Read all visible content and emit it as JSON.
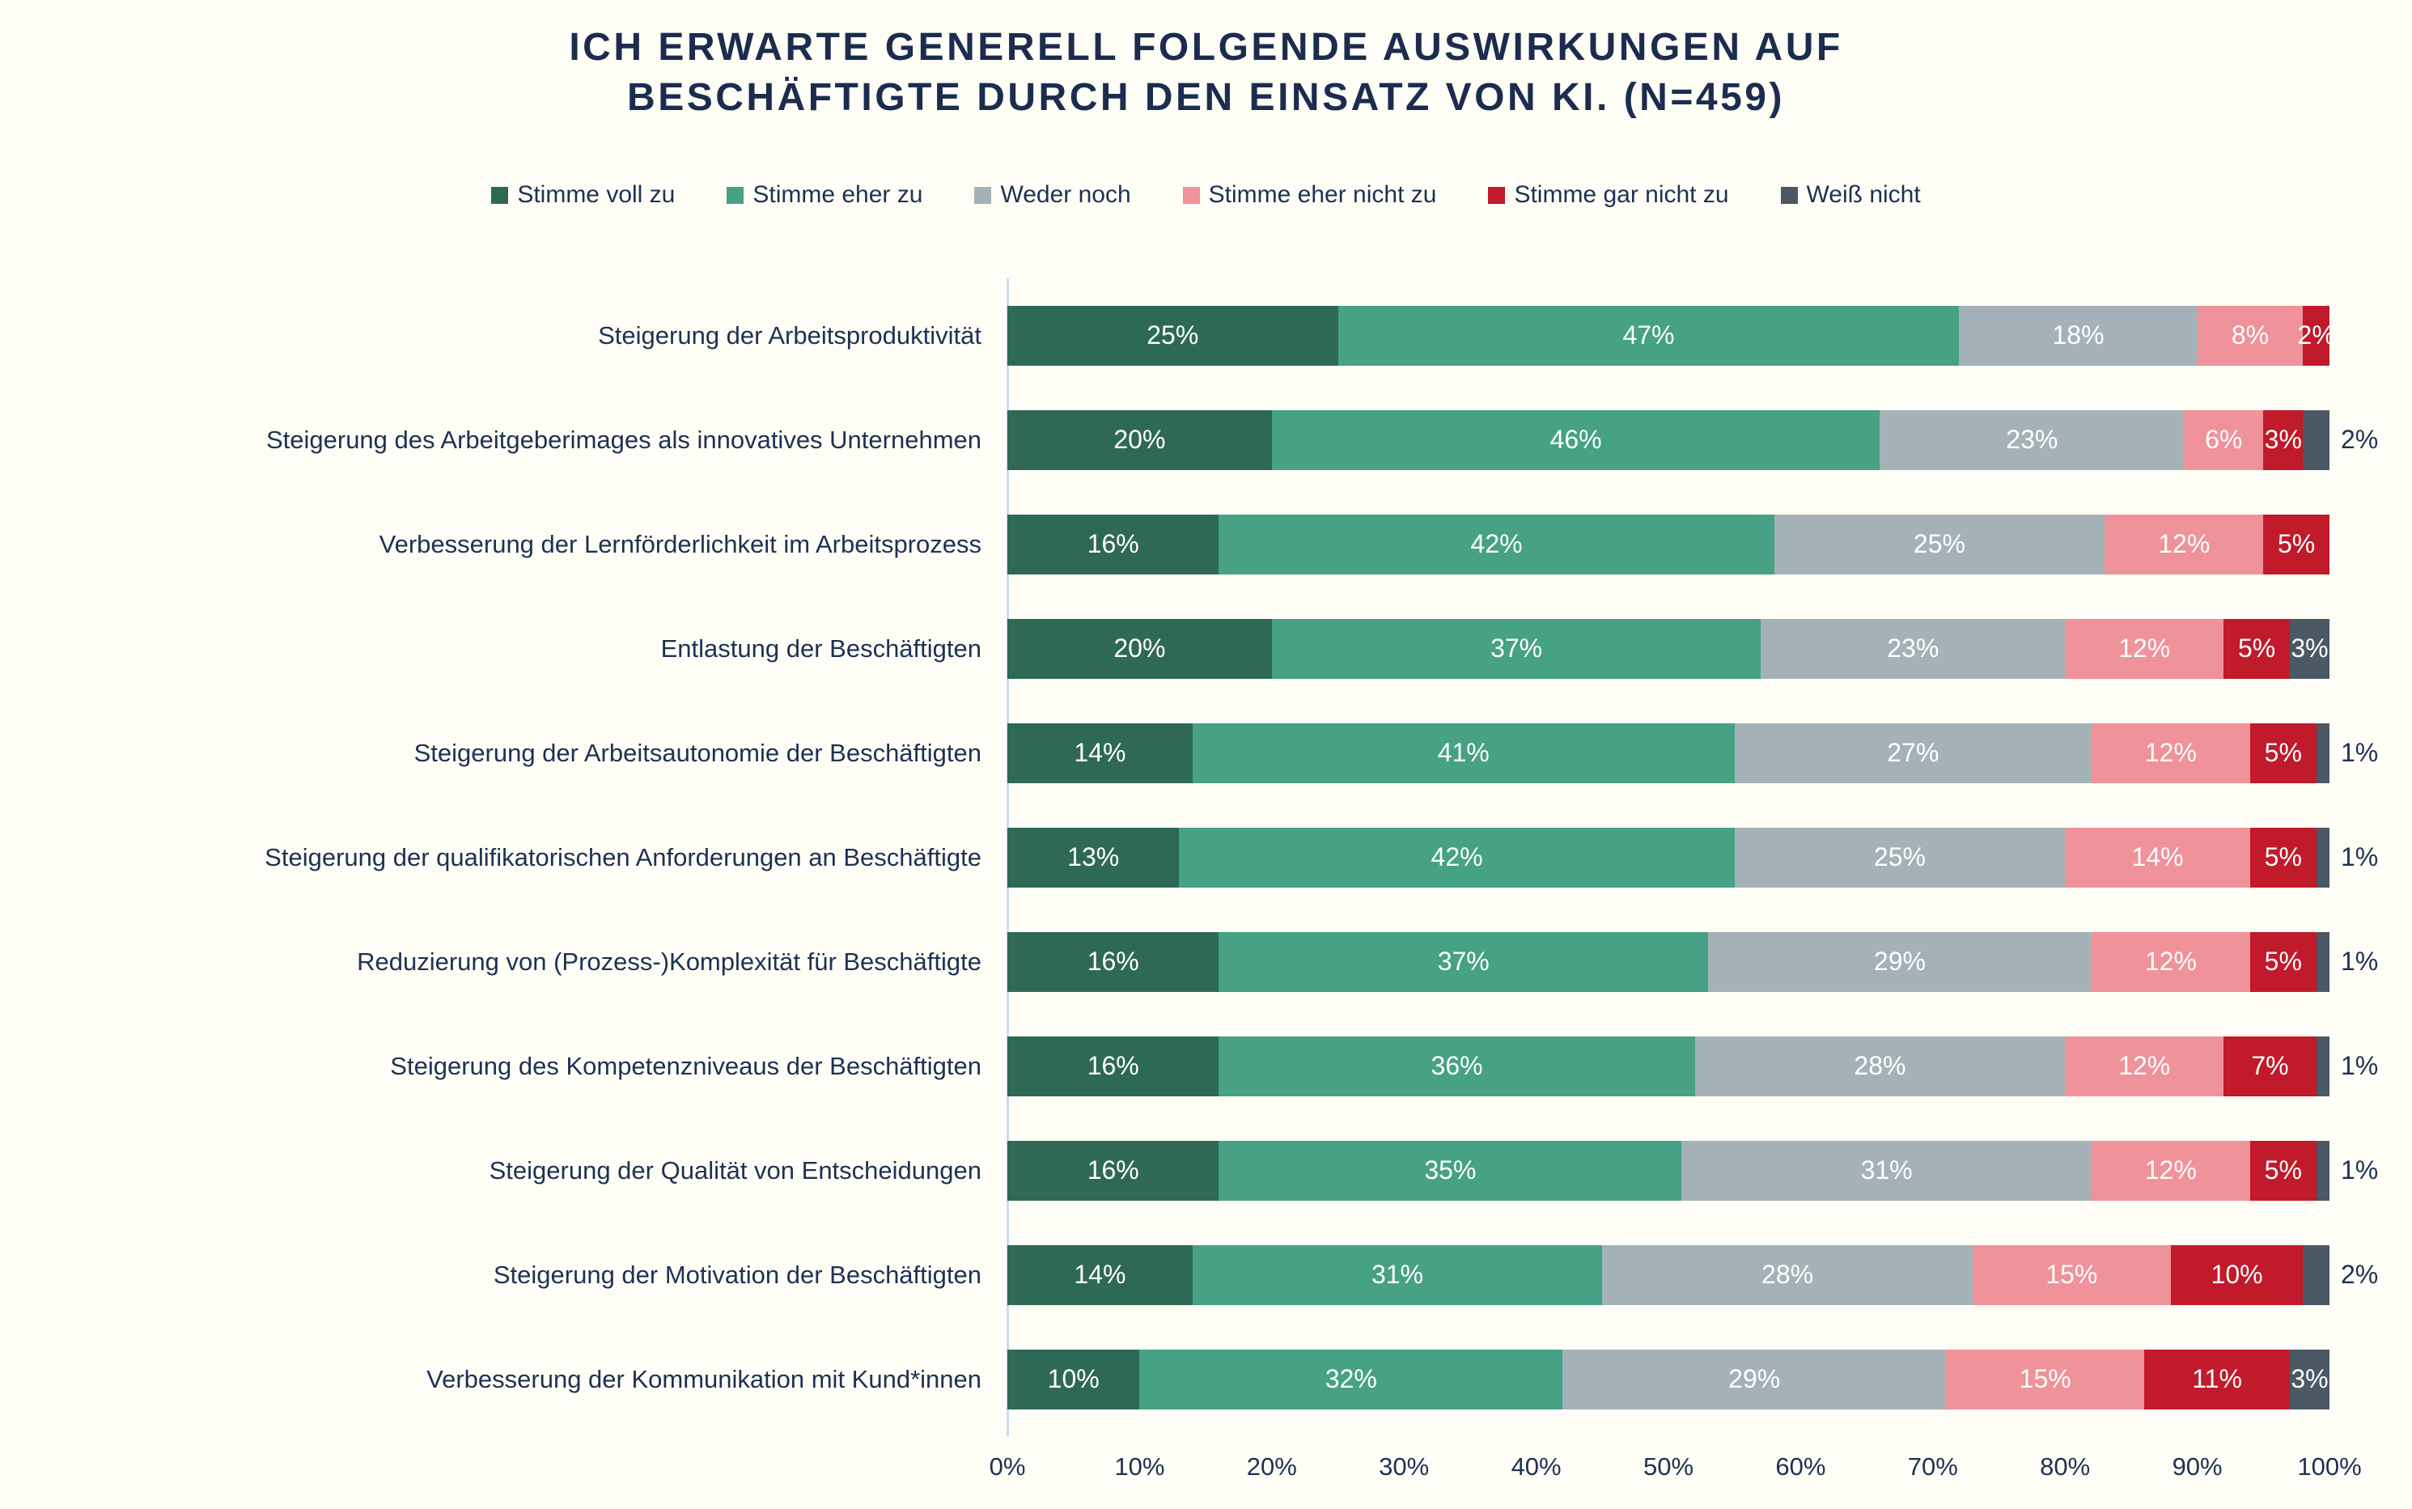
{
  "title": {
    "lines": [
      "ICH ERWARTE GENERELL FOLGENDE AUSWIRKUNGEN AUF",
      "BESCHÄFTIGTE DURCH DEN EINSATZ VON KI. (N=459)"
    ]
  },
  "legend": {
    "items": [
      {
        "key": "stimme-voll-zu",
        "label": "Stimme voll zu",
        "color": "#2E6956"
      },
      {
        "key": "stimme-eher-zu",
        "label": "Stimme eher zu",
        "color": "#46A185"
      },
      {
        "key": "weder-noch",
        "label": "Weder noch",
        "color": "#A4B2B8"
      },
      {
        "key": "stimme-eher-nicht-zu",
        "label": "Stimme eher nicht zu",
        "color": "#EF9299"
      },
      {
        "key": "stimme-gar-nicht-zu",
        "label": "Stimme gar nicht zu",
        "color": "#C01A2B"
      },
      {
        "key": "weiss-nicht",
        "label": "Weiß nicht",
        "color": "#4A5963"
      }
    ]
  },
  "chart_data": {
    "type": "bar",
    "stacked": true,
    "orientation": "horizontal",
    "title": "ICH ERWARTE GENERELL FOLGENDE AUSWIRKUNGEN AUF BESCHÄFTIGTE DURCH DEN EINSATZ VON KI. (N=459)",
    "series": [
      "Stimme voll zu",
      "Stimme eher zu",
      "Weder noch",
      "Stimme eher nicht zu",
      "Stimme gar nicht zu",
      "Weiß nicht"
    ],
    "categories": [
      "Steigerung der Arbeitsproduktivität",
      "Steigerung des Arbeitgeberimages als innovatives Unternehmen",
      "Verbesserung der Lernförderlichkeit im Arbeitsprozess",
      "Entlastung der Beschäftigten",
      "Steigerung der Arbeitsautonomie der Beschäftigten",
      "Steigerung der qualifikatorischen Anforderungen an Beschäftigte",
      "Reduzierung von (Prozess-)Komplexität für Beschäftigte",
      "Steigerung des Kompetenzniveaus der Beschäftigten",
      "Steigerung der Qualität von Entscheidungen",
      "Steigerung der Motivation der Beschäftigten",
      "Verbesserung der Kommunikation mit Kund*innen"
    ],
    "values": [
      [
        25,
        47,
        18,
        8,
        2,
        0
      ],
      [
        20,
        46,
        23,
        6,
        3,
        2
      ],
      [
        16,
        42,
        25,
        12,
        5,
        0
      ],
      [
        20,
        37,
        23,
        12,
        5,
        3
      ],
      [
        14,
        41,
        27,
        12,
        5,
        1
      ],
      [
        13,
        42,
        25,
        14,
        5,
        1
      ],
      [
        16,
        37,
        29,
        12,
        5,
        1
      ],
      [
        16,
        36,
        28,
        12,
        7,
        1
      ],
      [
        16,
        35,
        31,
        12,
        5,
        1
      ],
      [
        14,
        31,
        28,
        15,
        10,
        2
      ],
      [
        10,
        32,
        29,
        15,
        11,
        3
      ]
    ],
    "value_suffix": "%",
    "xlim": [
      0,
      100
    ],
    "xticks": [
      "0%",
      "10%",
      "20%",
      "30%",
      "40%",
      "50%",
      "60%",
      "70%",
      "80%",
      "90%",
      "100%"
    ],
    "legend_position": "top",
    "grid": false,
    "axis_line_color": "#C9DCF2",
    "outside_label_max": 2
  }
}
